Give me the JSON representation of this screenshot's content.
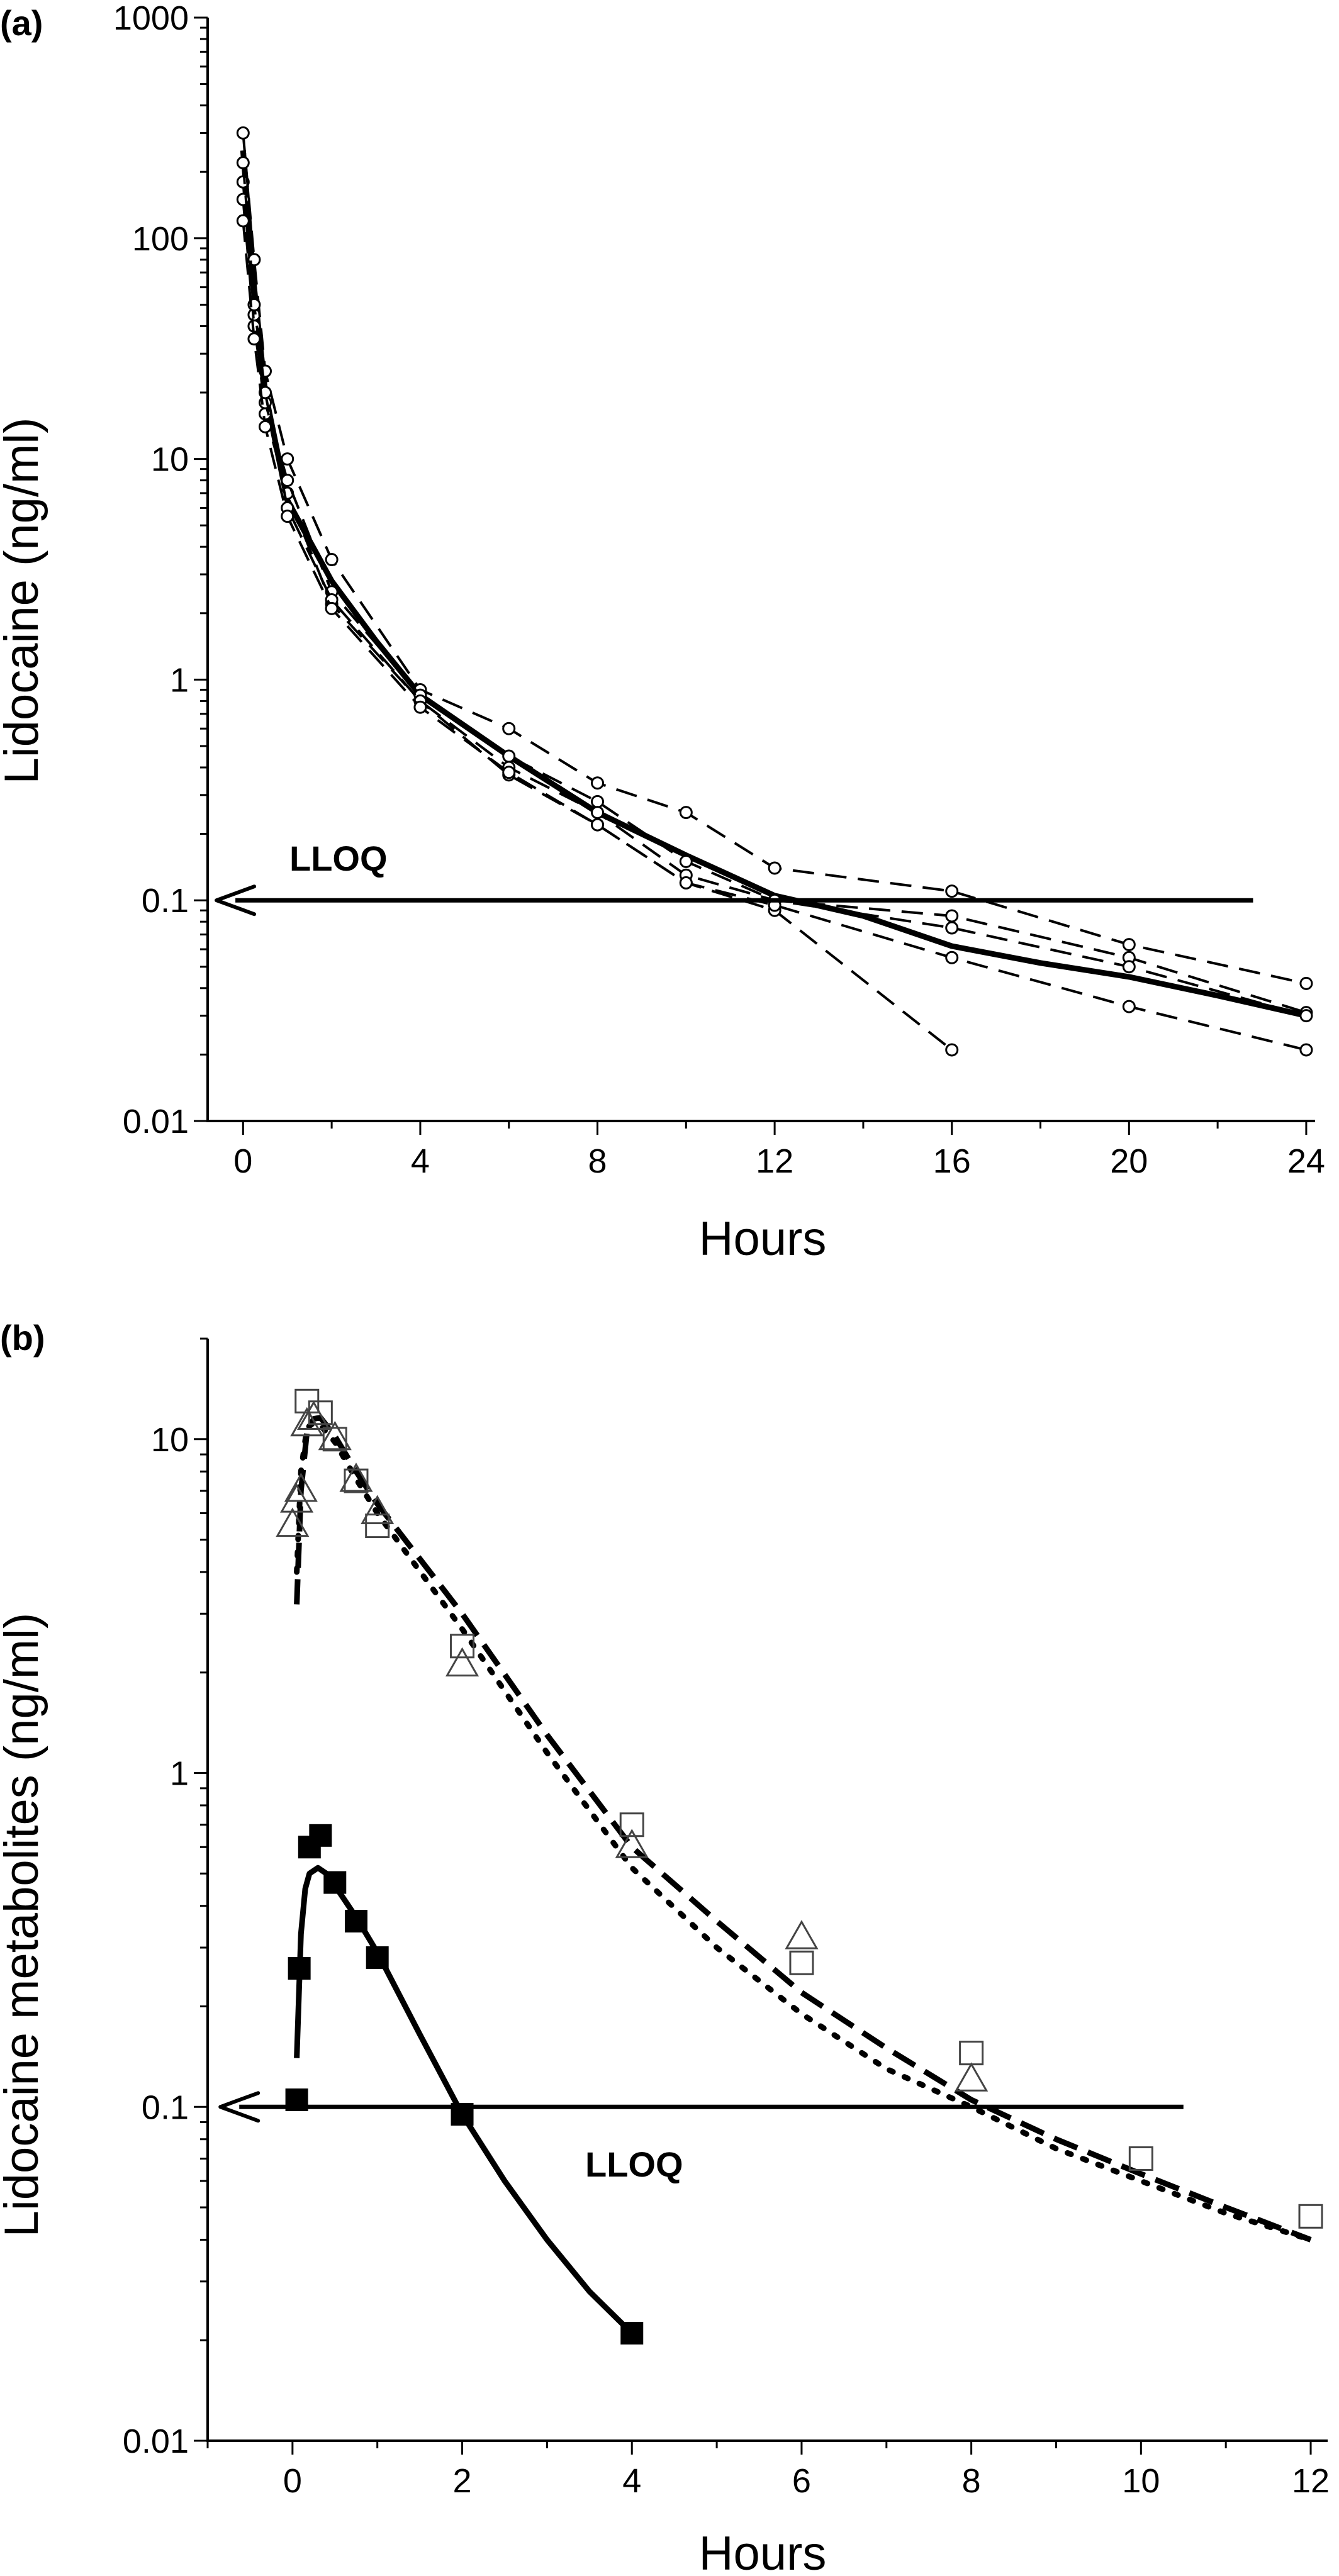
{
  "chart_data": [
    {
      "panel_label": "(a)",
      "type": "line",
      "xlabel": "Hours",
      "ylabel": "Lidocaine (ng/ml)",
      "yscale": "log",
      "xlim": [
        -0.8,
        24.2
      ],
      "ylim": [
        0.01,
        1000
      ],
      "xticks": [
        "0",
        "4",
        "8",
        "12",
        "16",
        "20",
        "24"
      ],
      "yticks": [
        "0.01",
        "0.1",
        "1",
        "10",
        "100",
        "1000"
      ],
      "annotation": "LLOQ",
      "lloq": {
        "value": 0.1,
        "x_from": 22.8,
        "x_to": -0.6
      },
      "series": [
        {
          "style": "solid",
          "x": [
            0,
            0.25,
            0.5,
            1,
            2,
            3,
            4,
            6,
            8,
            10,
            12,
            14,
            16,
            18,
            20,
            22,
            24
          ],
          "values": [
            250,
            60,
            20,
            6.5,
            2.8,
            1.5,
            0.85,
            0.45,
            0.25,
            0.16,
            0.105,
            0.085,
            0.062,
            0.052,
            0.045,
            0.037,
            0.03
          ]
        },
        {
          "style": "dashed",
          "x": [
            0,
            0.25,
            0.5,
            1,
            2,
            4,
            6,
            8,
            10,
            12,
            16
          ],
          "values": [
            180,
            45,
            16,
            7,
            2.2,
            0.8,
            0.37,
            0.22,
            0.12,
            0.09,
            0.021
          ]
        },
        {
          "style": "dashed",
          "x": [
            0,
            0.25,
            0.5,
            1,
            2,
            4,
            6,
            8,
            10,
            12,
            16,
            20,
            24
          ],
          "values": [
            300,
            80,
            25,
            10,
            3.5,
            0.9,
            0.6,
            0.34,
            0.25,
            0.14,
            0.11,
            0.063,
            0.042
          ]
        },
        {
          "style": "dashed",
          "x": [
            0,
            0.25,
            0.5,
            1,
            2,
            4,
            6,
            8,
            10,
            12,
            16,
            20,
            24
          ],
          "values": [
            150,
            40,
            18,
            8,
            2.5,
            0.85,
            0.45,
            0.28,
            0.15,
            0.1,
            0.085,
            0.055,
            0.031
          ]
        },
        {
          "style": "dashed",
          "x": [
            0,
            0.25,
            0.5,
            1,
            2,
            4,
            6,
            8,
            10,
            12,
            16,
            20,
            24
          ],
          "values": [
            220,
            50,
            20,
            6,
            2.3,
            0.8,
            0.4,
            0.25,
            0.13,
            0.1,
            0.075,
            0.05,
            0.03
          ]
        },
        {
          "style": "dashed",
          "x": [
            0,
            0.25,
            0.5,
            1,
            2,
            4,
            6,
            8,
            10,
            12,
            16,
            20,
            24
          ],
          "values": [
            120,
            35,
            14,
            5.5,
            2.1,
            0.75,
            0.38,
            0.22,
            0.12,
            0.095,
            0.055,
            0.033,
            0.021
          ]
        }
      ]
    },
    {
      "panel_label": "(b)",
      "type": "line",
      "xlabel": "Hours",
      "ylabel": "Lidocaine metabolites (ng/ml)",
      "yscale": "log",
      "xlim": [
        -1,
        12.2
      ],
      "ylim": [
        0.01,
        20
      ],
      "xticks": [
        "0",
        "2",
        "4",
        "6",
        "8",
        "10",
        "12"
      ],
      "yticks": [
        "0.01",
        "0.1",
        "1",
        "10"
      ],
      "annotation": "LLOQ",
      "lloq": {
        "value": 0.1,
        "x_from": 10.5,
        "x_to": -0.85
      },
      "series": [
        {
          "marker": "filled-square",
          "line": "solid",
          "x": [
            0.05,
            0.08,
            0.2,
            0.33,
            0.5,
            0.75,
            1,
            2,
            4
          ],
          "values": [
            0.105,
            0.26,
            0.6,
            0.65,
            0.47,
            0.36,
            0.28,
            0.095,
            0.021
          ],
          "fit_x": [
            0.05,
            0.1,
            0.15,
            0.2,
            0.3,
            0.4,
            0.5,
            0.75,
            1,
            1.5,
            2,
            2.5,
            3,
            3.5,
            4
          ],
          "fit_values": [
            0.14,
            0.33,
            0.45,
            0.5,
            0.52,
            0.5,
            0.46,
            0.37,
            0.29,
            0.165,
            0.095,
            0.06,
            0.04,
            0.028,
            0.021
          ]
        },
        {
          "marker": "open-square",
          "line": "dashed",
          "x": [
            0.17,
            0.33,
            0.5,
            0.75,
            1,
            2,
            4,
            6,
            8,
            10,
            12
          ],
          "values": [
            13,
            12,
            10,
            7.5,
            5.5,
            2.4,
            0.7,
            0.27,
            0.145,
            0.07,
            0.047
          ],
          "fit_x": [
            0.05,
            0.1,
            0.17,
            0.25,
            0.33,
            0.5,
            0.75,
            1,
            2,
            3,
            4,
            5,
            6,
            7,
            8,
            9,
            10,
            11,
            12
          ],
          "fit_values": [
            3.2,
            7,
            10.5,
            11.5,
            11.6,
            10.2,
            8,
            6.4,
            3,
            1.3,
            0.6,
            0.36,
            0.22,
            0.15,
            0.105,
            0.08,
            0.063,
            0.05,
            0.04
          ]
        },
        {
          "marker": "open-triangle",
          "line": "dotted",
          "x": [
            0.0,
            0.05,
            0.1,
            0.17,
            0.25,
            0.5,
            0.75,
            1,
            2,
            4,
            6,
            8
          ],
          "values": [
            5.5,
            6.5,
            7,
            11,
            11.5,
            10,
            7.5,
            6,
            2.1,
            0.6,
            0.32,
            0.12
          ],
          "fit_x": [
            0.05,
            0.1,
            0.17,
            0.25,
            0.33,
            0.5,
            0.75,
            1,
            2,
            3,
            4,
            5,
            6,
            7,
            8,
            9,
            10,
            11,
            12
          ],
          "fit_values": [
            4,
            8,
            10.8,
            11.2,
            11,
            9.8,
            7.6,
            6,
            2.7,
            1.15,
            0.52,
            0.3,
            0.19,
            0.13,
            0.1,
            0.075,
            0.06,
            0.048,
            0.04
          ]
        }
      ]
    }
  ]
}
